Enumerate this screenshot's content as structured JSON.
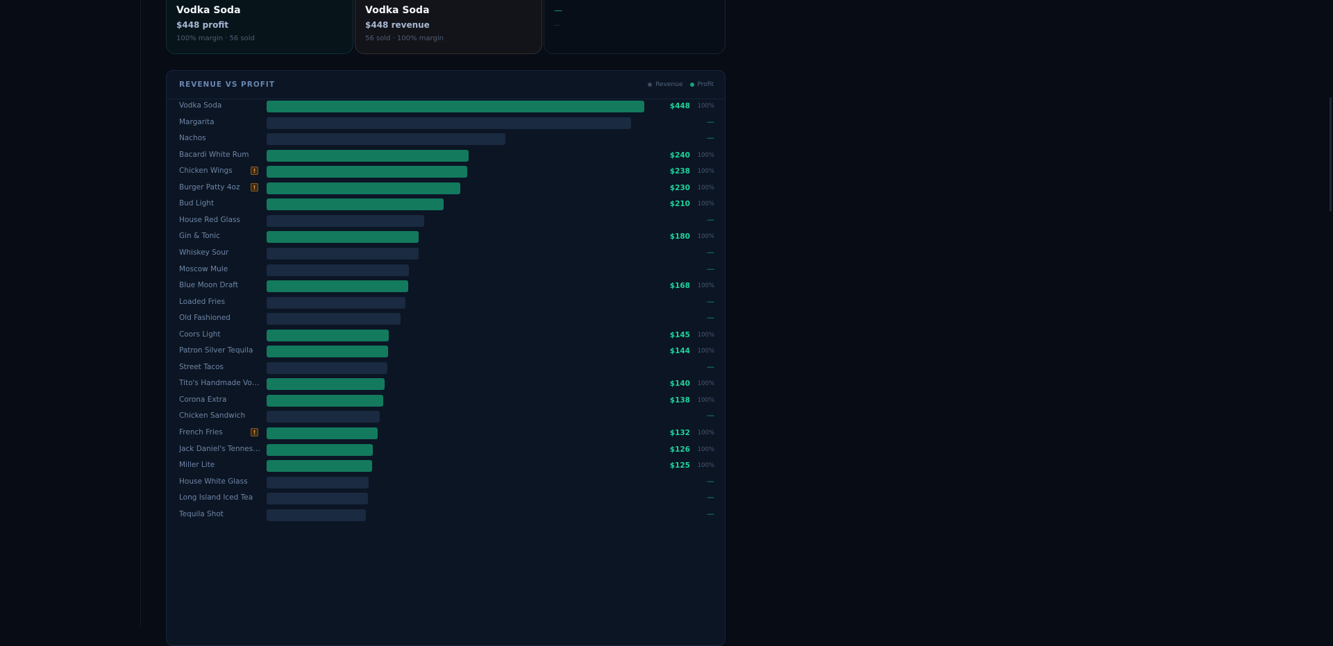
{
  "cards": [
    {
      "title": "Vodka Soda",
      "value": "$448 profit",
      "sub": "100% margin · 56 sold"
    },
    {
      "title": "Vodka Soda",
      "value": "$448 revenue",
      "sub": "56 sold · 100% margin"
    },
    {
      "title": "—",
      "value": "—",
      "sub": ""
    }
  ],
  "colors": {
    "revenue": "#1a2a40",
    "profit": "#137a5e",
    "profit_text": "#1fd39a",
    "legend_revenue_dot": "#3b4a60",
    "legend_profit_dot": "#17a37a"
  },
  "chart_data": {
    "type": "bar",
    "orientation": "horizontal",
    "title": "REVENUE VS PROFIT",
    "legend": {
      "position": "top-right",
      "items": [
        "Revenue",
        "Profit"
      ]
    },
    "max_value": 448,
    "categories": [
      "Vodka Soda",
      "Margarita",
      "Nachos",
      "Bacardi White Rum",
      "Chicken Wings",
      "Burger Patty 4oz",
      "Bud Light",
      "House Red Glass",
      "Gin & Tonic",
      "Whiskey Sour",
      "Moscow Mule",
      "Blue Moon Draft",
      "Loaded Fries",
      "Old Fashioned",
      "Coors Light",
      "Patron Silver Tequila",
      "Street Tacos",
      "Tito's Handmade Vodka",
      "Corona Extra",
      "Chicken Sandwich",
      "French Fries",
      "Jack Daniel's Tennessee...",
      "Miller Lite",
      "House White Glass",
      "Long Island Iced Tea",
      "Tequila Shot"
    ],
    "flags": [
      false,
      false,
      false,
      false,
      true,
      true,
      false,
      false,
      false,
      false,
      false,
      false,
      false,
      false,
      false,
      false,
      false,
      false,
      false,
      false,
      true,
      false,
      false,
      false,
      false,
      false
    ],
    "flag_glyph": "!",
    "series": [
      {
        "name": "Revenue",
        "values": [
          448,
          432,
          283,
          240,
          238,
          230,
          210,
          187,
          180,
          180,
          169,
          168,
          165,
          159,
          145,
          144,
          143,
          140,
          138,
          134,
          132,
          126,
          125,
          121,
          120,
          118
        ]
      },
      {
        "name": "Profit",
        "values": [
          448,
          null,
          null,
          240,
          238,
          230,
          210,
          null,
          180,
          null,
          null,
          168,
          null,
          null,
          145,
          144,
          null,
          140,
          138,
          null,
          132,
          126,
          125,
          null,
          null,
          null
        ]
      }
    ],
    "value_labels": [
      "$448",
      "—",
      "—",
      "$240",
      "$238",
      "$230",
      "$210",
      "—",
      "$180",
      "—",
      "—",
      "$168",
      "—",
      "—",
      "$145",
      "$144",
      "—",
      "$140",
      "$138",
      "—",
      "$132",
      "$126",
      "$125",
      "—",
      "—",
      "—"
    ],
    "margin_labels": [
      "100%",
      "",
      "",
      "100%",
      "100%",
      "100%",
      "100%",
      "",
      "100%",
      "",
      "",
      "100%",
      "",
      "",
      "100%",
      "100%",
      "",
      "100%",
      "100%",
      "",
      "100%",
      "100%",
      "100%",
      "",
      "",
      ""
    ]
  }
}
